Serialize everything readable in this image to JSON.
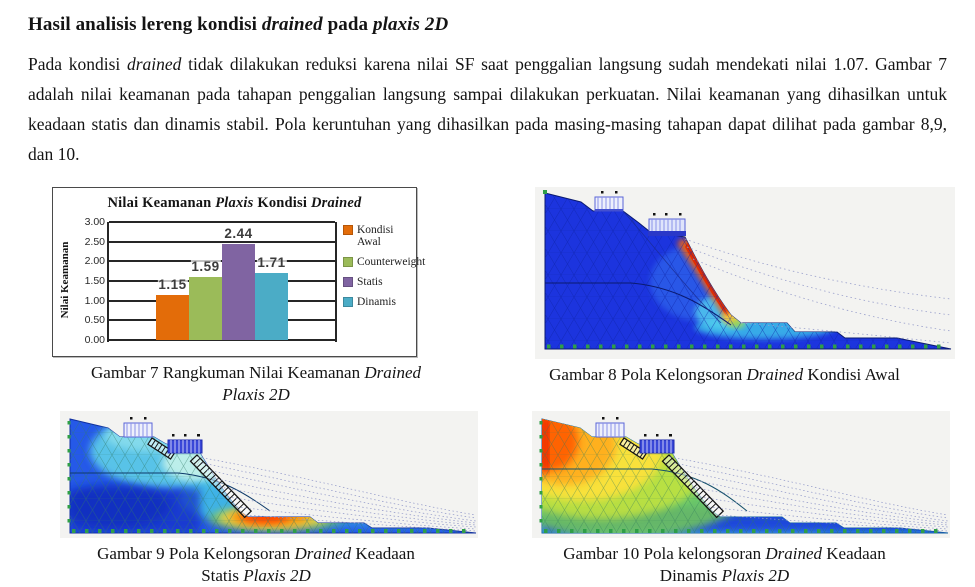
{
  "heading": {
    "segments": [
      {
        "t": "Hasil analisis lereng kondisi ",
        "b": true
      },
      {
        "t": "drained",
        "b": true,
        "i": true
      },
      {
        "t": " pada ",
        "b": true
      },
      {
        "t": "plaxis 2D",
        "b": true,
        "i": true
      }
    ]
  },
  "paragraph": {
    "segments": [
      {
        "t": "Pada kondisi "
      },
      {
        "t": "drained",
        "i": true
      },
      {
        "t": " tidak dilakukan reduksi karena nilai SF saat penggalian langsung sudah mendekati nilai 1.07. Gambar 7 adalah nilai keamanan pada tahapan penggalian langsung sampai dilakukan perkuatan. Nilai keamanan yang dihasilkan untuk keadaan statis dan dinamis stabil. Pola keruntuhan yang dihasilkan pada masing-masing tahapan dapat dilihat pada gambar 8,9, dan 10."
      }
    ]
  },
  "chart_data": {
    "type": "bar",
    "title_segments": [
      {
        "t": "Nilai Keamanan "
      },
      {
        "t": "Plaxis",
        "i": true
      },
      {
        "t": " Kondisi "
      },
      {
        "t": "Drained",
        "i": true
      }
    ],
    "categories": [
      "Kondisi Awal",
      "Counterweight",
      "Statis",
      "Dinamis"
    ],
    "values": [
      1.15,
      1.59,
      2.44,
      1.71
    ],
    "colors": [
      "#E36C09",
      "#9BBB59",
      "#8064A2",
      "#4BACC6"
    ],
    "ylabel": "Nilai Keamanan",
    "xlabel": "",
    "yticks": [
      "3.00",
      "2.50",
      "2.00",
      "1.50",
      "1.00",
      "0.50",
      "0.00"
    ],
    "ylim": [
      0,
      3
    ],
    "grid": true,
    "legend": [
      "Kondisi Awal",
      "Counterweight",
      "Statis",
      "Dinamis"
    ],
    "legend_position": "right"
  },
  "figures": {
    "fem_palette": [
      "#1c34de",
      "#35c8e8",
      "#9ed43c",
      "#ffd43a",
      "#ff8a00",
      "#e02800"
    ],
    "boundary_tick_color": "#2f9e48",
    "fig7_caption": [
      [
        {
          "t": "Gambar 7 Rangkuman Nilai Keamanan "
        },
        {
          "t": "Drained",
          "i": true
        }
      ],
      [
        {
          "t": "Plaxis 2D",
          "i": true
        }
      ]
    ],
    "fig8_caption": [
      [
        {
          "t": "Gambar 8 Pola Kelongsoran "
        },
        {
          "t": "Drained",
          "i": true
        },
        {
          "t": " Kondisi Awal"
        }
      ]
    ],
    "fig9_caption": [
      [
        {
          "t": "Gambar 9 Pola Kelongsoran "
        },
        {
          "t": "Drained",
          "i": true
        },
        {
          "t": " Keadaan"
        }
      ],
      [
        {
          "t": "Statis "
        },
        {
          "t": "Plaxis 2D",
          "i": true
        }
      ]
    ],
    "fig10_caption": [
      [
        {
          "t": "Gambar 10 Pola kelongsoran "
        },
        {
          "t": "Drained",
          "i": true
        },
        {
          "t": " Keadaan"
        }
      ],
      [
        {
          "t": "Dinamis "
        },
        {
          "t": "Plaxis 2D",
          "i": true
        }
      ]
    ]
  }
}
